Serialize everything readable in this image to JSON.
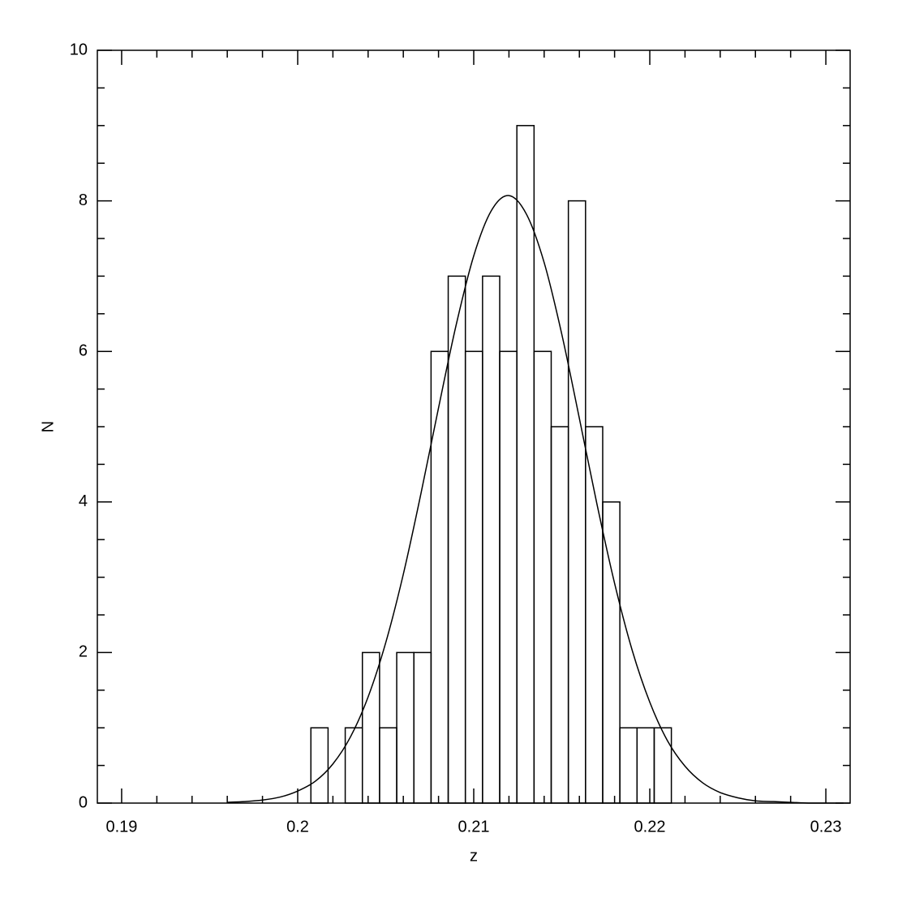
{
  "chart_data": {
    "type": "histogram",
    "xlabel": "z",
    "ylabel": "N",
    "bins": [
      0.20075,
      0.201725,
      0.2027,
      0.203675,
      0.20465,
      0.205625,
      0.2066,
      0.207575,
      0.20855,
      0.209525,
      0.2105,
      0.211475,
      0.21245,
      0.213425,
      0.2144,
      0.215375,
      0.21635,
      0.217325,
      0.2183,
      0.219275,
      0.22025,
      0.221225
    ],
    "values": [
      1,
      0,
      1,
      2,
      1,
      2,
      2,
      6,
      7,
      6,
      7,
      6,
      9,
      6,
      5,
      8,
      5,
      4,
      1,
      1,
      1
    ],
    "color": "#000000",
    "fit": {
      "type": "line",
      "color": "#000000",
      "x": [
        0.196,
        0.197,
        0.198,
        0.199,
        0.2,
        0.201,
        0.202,
        0.203,
        0.204,
        0.205,
        0.206,
        0.207,
        0.208,
        0.209,
        0.21,
        0.211,
        0.212,
        0.213,
        0.214,
        0.215,
        0.216,
        0.217,
        0.218,
        0.219,
        0.22,
        0.221,
        0.222,
        0.223,
        0.224,
        0.225,
        0.226,
        0.227,
        0.228,
        0.229,
        0.23,
        0.231
      ],
      "values": [
        0.01,
        0.02,
        0.04,
        0.08,
        0.16,
        0.29,
        0.52,
        0.88,
        1.41,
        2.13,
        3.04,
        4.11,
        5.25,
        6.35,
        7.27,
        7.87,
        8.07,
        7.82,
        7.18,
        6.23,
        5.11,
        3.97,
        2.92,
        2.03,
        1.34,
        0.83,
        0.49,
        0.27,
        0.14,
        0.07,
        0.03,
        0.02,
        0.01,
        0,
        0,
        0
      ]
    },
    "xlim": [
      0.18862,
      0.23138
    ],
    "ylim": [
      0,
      10
    ],
    "xticks": [
      0.19,
      0.2,
      0.21,
      0.22,
      0.23
    ],
    "yticks": [
      0,
      2,
      4,
      6,
      8,
      10
    ],
    "xminorticks": [
      0.192,
      0.194,
      0.196,
      0.198,
      0.202,
      0.204,
      0.206,
      0.208,
      0.212,
      0.214,
      0.216,
      0.218,
      0.222,
      0.224,
      0.226,
      0.228
    ],
    "yminorticks": [
      0.5,
      1,
      1.5,
      2.5,
      3,
      3.5,
      4.5,
      5,
      5.5,
      6.5,
      7,
      7.5,
      8.5,
      9,
      9.5
    ]
  }
}
